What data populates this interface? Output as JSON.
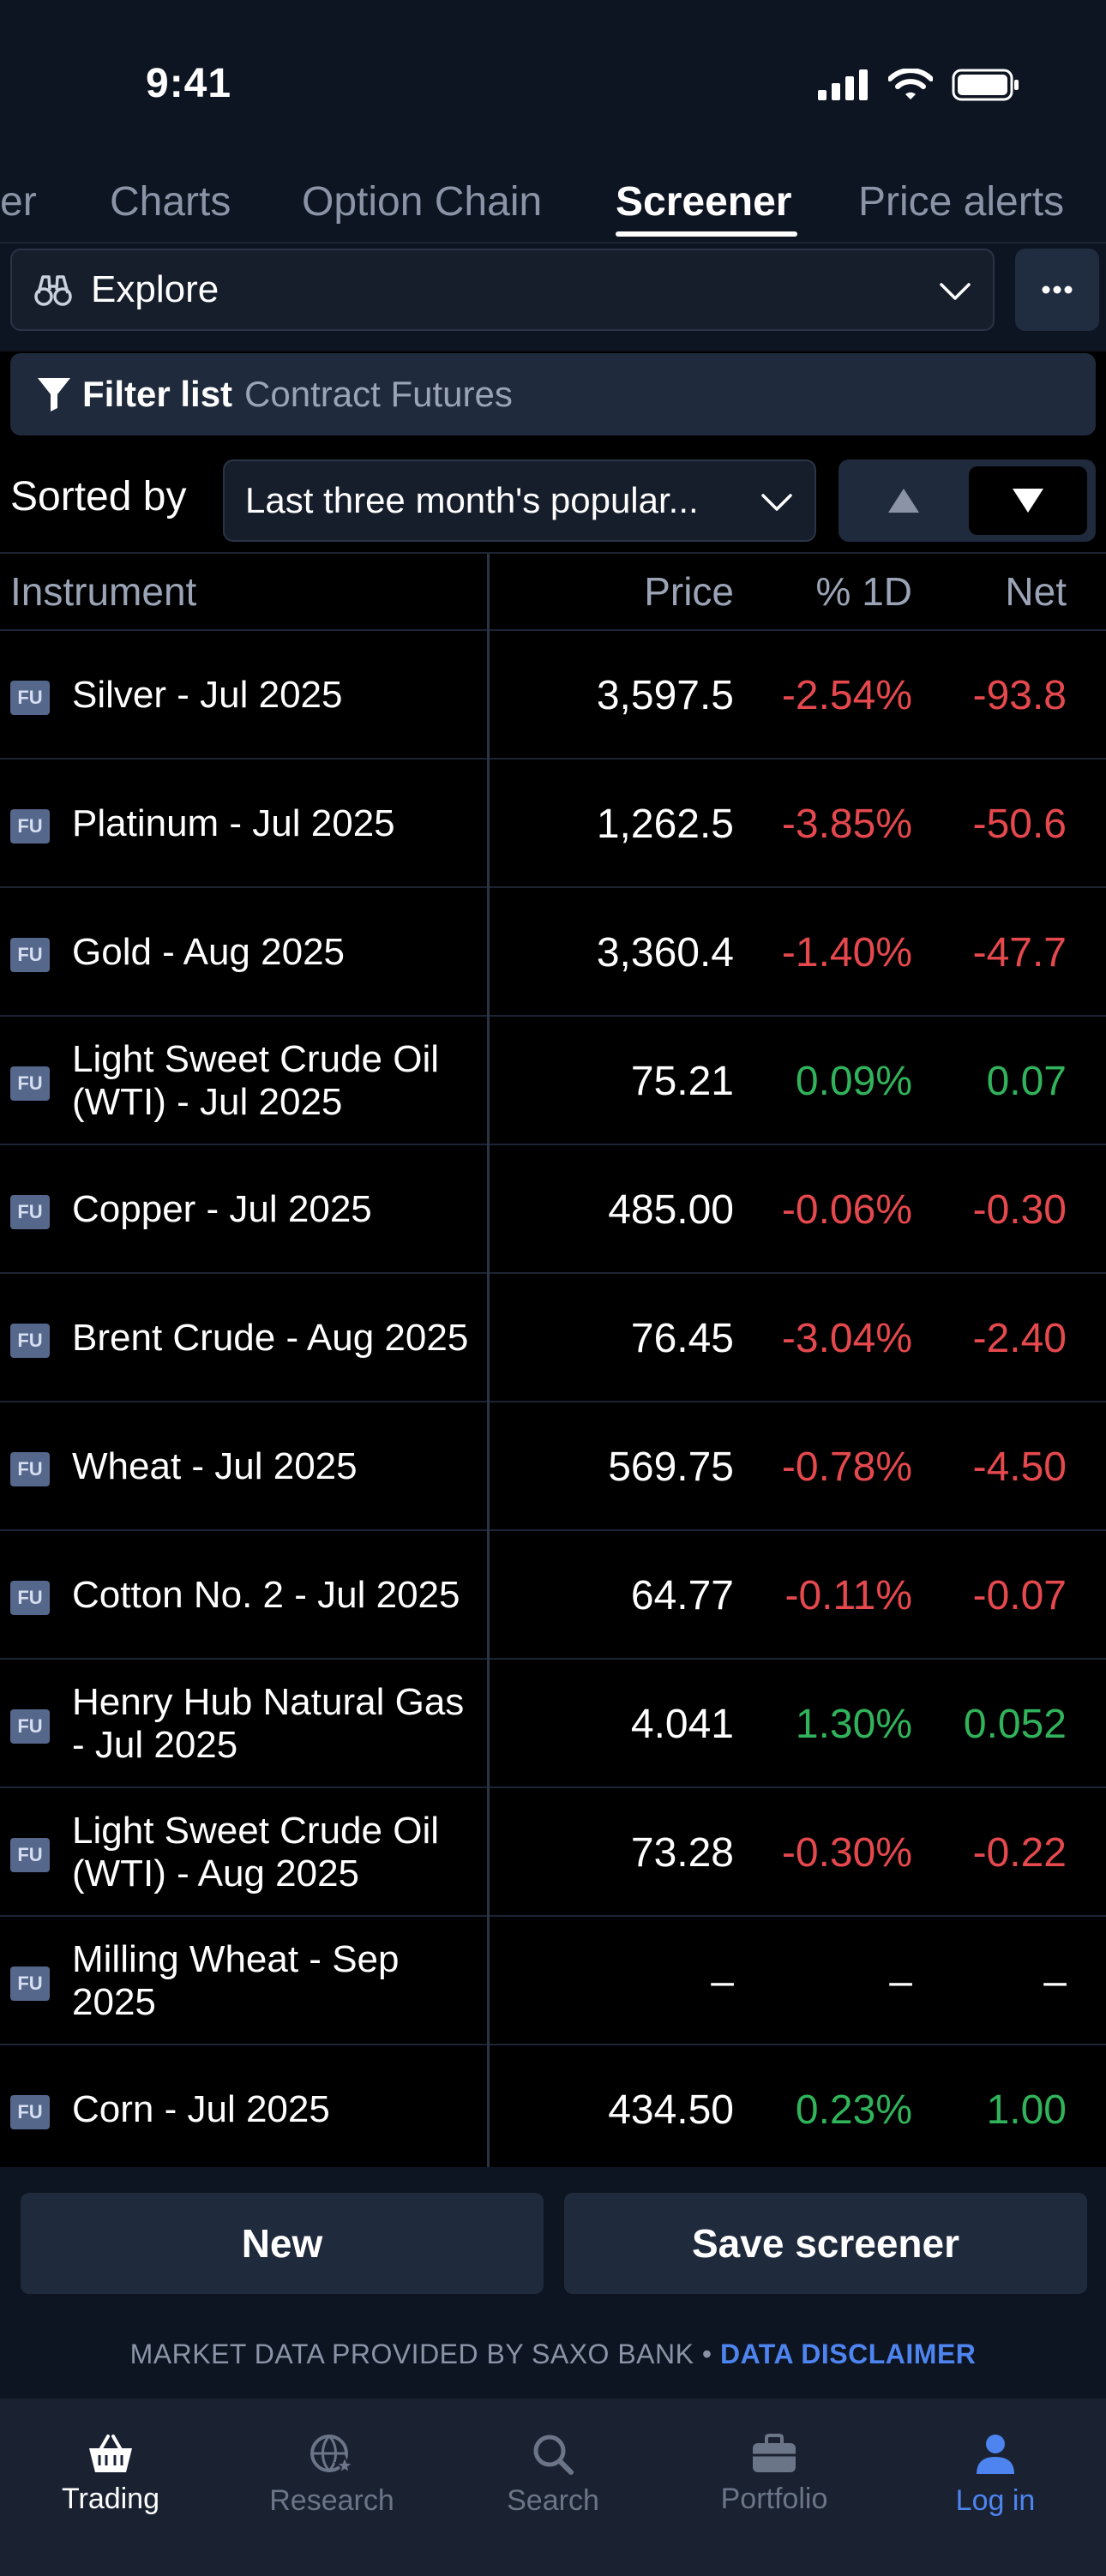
{
  "status_bar": {
    "time": "9:41"
  },
  "tabs": [
    {
      "label": "er",
      "active": false
    },
    {
      "label": "Charts",
      "active": false
    },
    {
      "label": "Option Chain",
      "active": false
    },
    {
      "label": "Screener",
      "active": true
    },
    {
      "label": "Price alerts",
      "active": false
    }
  ],
  "explore": {
    "label": "Explore",
    "icon": "binoculars-icon"
  },
  "filter": {
    "label": "Filter list",
    "value": "Contract Futures",
    "icon": "filter-icon"
  },
  "sort": {
    "label": "Sorted by",
    "value": "Last three month's popular...",
    "direction": "descending"
  },
  "table": {
    "headers": {
      "instrument": "Instrument",
      "price": "Price",
      "pct": "% 1D",
      "net": "Net"
    },
    "badge": "FU",
    "rows": [
      {
        "name": "Silver - Jul 2025",
        "price": "3,597.5",
        "pct": "-2.54%",
        "net": "-93.8",
        "trend": "neg"
      },
      {
        "name": "Platinum - Jul 2025",
        "price": "1,262.5",
        "pct": "-3.85%",
        "net": "-50.6",
        "trend": "neg"
      },
      {
        "name": "Gold - Aug 2025",
        "price": "3,360.4",
        "pct": "-1.40%",
        "net": "-47.7",
        "trend": "neg"
      },
      {
        "name": "Light Sweet Crude Oil (WTI) - Jul 2025",
        "price": "75.21",
        "pct": "0.09%",
        "net": "0.07",
        "trend": "pos"
      },
      {
        "name": "Copper - Jul 2025",
        "price": "485.00",
        "pct": "-0.06%",
        "net": "-0.30",
        "trend": "neg"
      },
      {
        "name": "Brent Crude - Aug 2025",
        "price": "76.45",
        "pct": "-3.04%",
        "net": "-2.40",
        "trend": "neg"
      },
      {
        "name": "Wheat - Jul 2025",
        "price": "569.75",
        "pct": "-0.78%",
        "net": "-4.50",
        "trend": "neg"
      },
      {
        "name": "Cotton No. 2 - Jul 2025",
        "price": "64.77",
        "pct": "-0.11%",
        "net": "-0.07",
        "trend": "neg"
      },
      {
        "name": "Henry Hub Natural Gas - Jul 2025",
        "price": "4.041",
        "pct": "1.30%",
        "net": "0.052",
        "trend": "pos"
      },
      {
        "name": "Light Sweet Crude Oil (WTI) - Aug 2025",
        "price": "73.28",
        "pct": "-0.30%",
        "net": "-0.22",
        "trend": "neg"
      },
      {
        "name": "Milling Wheat - Sep 2025",
        "price": "–",
        "pct": "–",
        "net": "–",
        "trend": "neu"
      },
      {
        "name": "Corn - Jul 2025",
        "price": "434.50",
        "pct": "0.23%",
        "net": "1.00",
        "trend": "pos"
      }
    ]
  },
  "actions": {
    "new": "New",
    "save": "Save screener"
  },
  "disclaimer": {
    "text": "MARKET DATA PROVIDED BY SAXO BANK •",
    "link": "DATA DISCLAIMER"
  },
  "bottom_nav": [
    {
      "label": "Trading",
      "icon": "basket-icon",
      "state": "active"
    },
    {
      "label": "Research",
      "icon": "globe-star-icon",
      "state": "inactive"
    },
    {
      "label": "Search",
      "icon": "search-icon",
      "state": "inactive"
    },
    {
      "label": "Portfolio",
      "icon": "briefcase-icon",
      "state": "inactive"
    },
    {
      "label": "Log in",
      "icon": "user-icon",
      "state": "login"
    }
  ],
  "colors": {
    "negative": "#e5484d",
    "positive": "#30b35a",
    "link": "#4d84f0",
    "surface": "#0e1522"
  }
}
